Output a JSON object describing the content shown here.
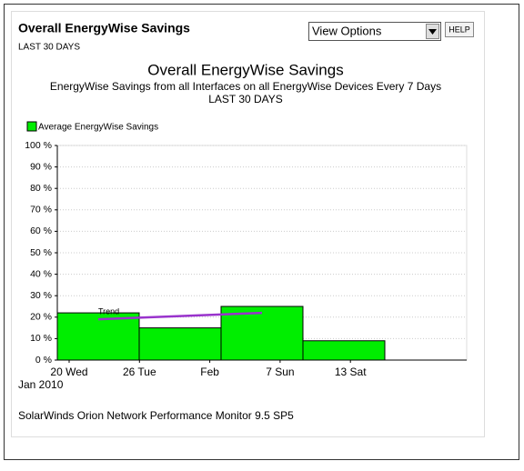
{
  "header": {
    "title": "Overall EnergyWise Savings",
    "subtitle": "LAST 30 DAYS",
    "select": "View Options",
    "help": "HELP"
  },
  "chart_data": {
    "type": "bar",
    "title": "Overall EnergyWise Savings",
    "subtitle": "EnergyWise Savings from all Interfaces on all EnergyWise Devices Every 7 Days",
    "period": "LAST 30 DAYS",
    "series": [
      {
        "name": "Average EnergyWise Savings",
        "color": "#00ee00",
        "values": [
          22,
          15,
          25,
          9
        ]
      }
    ],
    "trend": {
      "name": "Trend",
      "color": "#9933cc",
      "values": [
        19,
        20.5,
        22
      ]
    },
    "xtick_labels": [
      "20 Wed",
      "26 Tue",
      "Feb",
      "7 Sun",
      "13 Sat"
    ],
    "x_sublabel": "Jan 2010",
    "ylim": [
      0,
      100
    ],
    "yticks": [
      {
        "value": 0,
        "label": "0 %"
      },
      {
        "value": 10,
        "label": "10 %"
      },
      {
        "value": 20,
        "label": "20 %"
      },
      {
        "value": 30,
        "label": "30 %"
      },
      {
        "value": 40,
        "label": "40 %"
      },
      {
        "value": 50,
        "label": "50 %"
      },
      {
        "value": 60,
        "label": "60 %"
      },
      {
        "value": 70,
        "label": "70 %"
      },
      {
        "value": 80,
        "label": "80 %"
      },
      {
        "value": 90,
        "label": "90 %"
      },
      {
        "value": 100,
        "label": "100 %"
      }
    ],
    "grid": true,
    "legend": "top-left"
  },
  "footer": "SolarWinds Orion Network Performance Monitor 9.5 SP5"
}
